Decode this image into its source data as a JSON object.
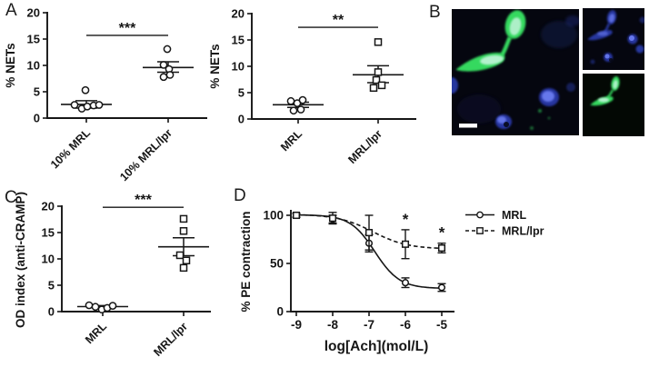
{
  "panels": {
    "a": {
      "label": "A"
    },
    "b": {
      "label": "B"
    },
    "c": {
      "label": "C"
    },
    "d": {
      "label": "D"
    }
  },
  "panel_b": {
    "scalebar": true,
    "colors": {
      "background": "#05060f",
      "green": "#35d95f",
      "green_bright": "#c2f4da",
      "blue": "#2e41b8",
      "blue_bright": "#6a7cf0",
      "scalebar": "#ffffff"
    }
  },
  "chart_data": [
    {
      "id": "A-left",
      "type": "scatter",
      "ylabel": "% NETs",
      "ylim": [
        0,
        20
      ],
      "yticks": [
        0,
        5,
        10,
        15,
        20
      ],
      "categories": [
        "10% MRL",
        "10% MRL/lpr"
      ],
      "groups": [
        {
          "name": "10% MRL",
          "marker": "circle",
          "points": [
            [
              -13,
              2.5
            ],
            [
              -5,
              1.8
            ],
            [
              1,
              2.2
            ],
            [
              8,
              2.4
            ],
            [
              14,
              2.5
            ],
            [
              -1,
              5.3
            ]
          ],
          "mean": 2.6,
          "sem": [
            1.9,
            3.3
          ]
        },
        {
          "name": "10% MRL/lpr",
          "marker": "circle",
          "points": [
            [
              -1,
              13.1
            ],
            [
              -5,
              10.1
            ],
            [
              1,
              9.3
            ],
            [
              2,
              8.2
            ],
            [
              -5,
              7.8
            ]
          ],
          "mean": 9.6,
          "sem": [
            8.7,
            10.7
          ]
        }
      ],
      "significance": {
        "label": "***",
        "y": 15.7
      }
    },
    {
      "id": "A-right",
      "type": "scatter",
      "ylabel": "% NETs",
      "ylim": [
        0,
        20
      ],
      "yticks": [
        0,
        5,
        10,
        15,
        20
      ],
      "categories": [
        "MRL",
        "MRL/lpr"
      ],
      "groups": [
        {
          "name": "MRL",
          "marker": "circle",
          "points": [
            [
              -8,
              3.4
            ],
            [
              -1,
              3.0
            ],
            [
              5,
              3.6
            ],
            [
              -5,
              1.6
            ],
            [
              3,
              1.8
            ]
          ],
          "mean": 2.7,
          "sem": [
            2.2,
            3.2
          ]
        },
        {
          "name": "MRL/lpr",
          "marker": "square",
          "points": [
            [
              0,
              14.6
            ],
            [
              0,
              8.9
            ],
            [
              -2,
              7.4
            ],
            [
              -5,
              5.9
            ],
            [
              4,
              6.4
            ]
          ],
          "mean": 8.4,
          "sem": [
            6.9,
            10.1
          ]
        }
      ],
      "significance": {
        "label": "**",
        "y": 17.4
      }
    },
    {
      "id": "C",
      "type": "scatter",
      "ylabel": "OD index (anti-CRAMP)",
      "ylim": [
        0,
        20
      ],
      "yticks": [
        0,
        5,
        10,
        15,
        20
      ],
      "categories": [
        "MRL",
        "MRL/lpr"
      ],
      "groups": [
        {
          "name": "MRL",
          "marker": "circle",
          "points": [
            [
              -15,
              1.2
            ],
            [
              -8,
              0.9
            ],
            [
              -1,
              0.4
            ],
            [
              5,
              0.7
            ],
            [
              11,
              1.1
            ]
          ],
          "mean": 0.95,
          "sem": [
            0.75,
            1.15
          ]
        },
        {
          "name": "MRL/lpr",
          "marker": "square",
          "points": [
            [
              0,
              17.6
            ],
            [
              0,
              15.3
            ],
            [
              -4,
              10.7
            ],
            [
              3,
              9.7
            ],
            [
              0,
              8.3
            ]
          ],
          "mean": 12.3,
          "sem": [
            10.6,
            14.0
          ]
        }
      ],
      "significance": {
        "label": "***",
        "y": 19.8
      }
    },
    {
      "id": "D",
      "type": "line",
      "xlabel": "log[Ach](mol/L)",
      "ylabel": "% PE contraction",
      "x": [
        -9,
        -8,
        -7,
        -6,
        -5
      ],
      "xticks": [
        -9,
        -8,
        -7,
        -6,
        -5
      ],
      "ylim": [
        0,
        110
      ],
      "yticks": [
        0,
        50,
        100
      ],
      "series": [
        {
          "name": "MRL",
          "marker": "circle",
          "line_style": "solid",
          "values": [
            100,
            96,
            71,
            30,
            25
          ],
          "errors": [
            2,
            4,
            9,
            5,
            4
          ],
          "fit": {
            "top": 100.5,
            "bottom": 24,
            "ec50": -6.84,
            "hill": 1.28
          }
        },
        {
          "name": "MRL/lpr",
          "marker": "square",
          "line_style": "dashed",
          "values": [
            100,
            97,
            82,
            70,
            66
          ],
          "errors": [
            2,
            6,
            18,
            15,
            5
          ],
          "fit": {
            "top": 101,
            "bottom": 65,
            "ec50": -6.9,
            "hill": 0.9
          },
          "significance": [
            {
              "x": -6,
              "label": "*"
            },
            {
              "x": -5,
              "label": "*"
            }
          ]
        }
      ],
      "legend": {
        "entries": [
          "MRL",
          "MRL/lpr"
        ],
        "position": "right"
      }
    }
  ]
}
